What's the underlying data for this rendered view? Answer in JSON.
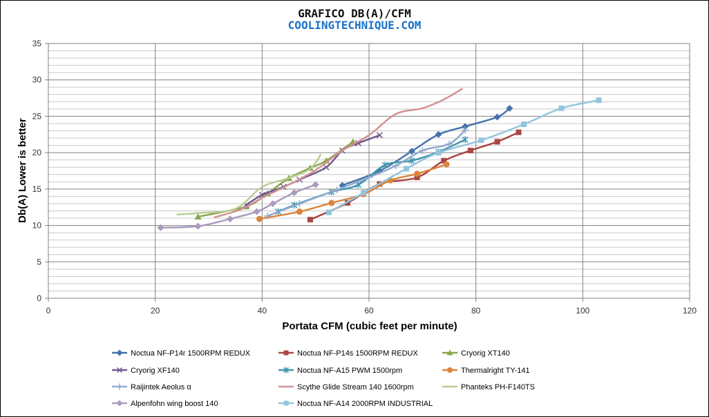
{
  "chart_data": {
    "type": "line",
    "title": "GRAFICO DB(A)/CFM",
    "subtitle": "COOLINGTECHNIQUE.COM",
    "xlabel": "Portata CFM (cubic feet per minute)",
    "ylabel": "Db(A) Lower is better",
    "xlim": [
      0,
      120
    ],
    "ylim": [
      0,
      35
    ],
    "xticks": [
      0,
      20,
      40,
      60,
      80,
      100,
      120
    ],
    "yticks": [
      0,
      5,
      10,
      15,
      20,
      25,
      30,
      35
    ],
    "grid": true,
    "legend_position": "bottom",
    "colors": {
      "title": "#111111",
      "subtitle": "#1a73c8",
      "major_grid": "#808080",
      "minor_grid": "#c8c8c8"
    },
    "series": [
      {
        "name": "Noctua NF-P14r 1500RPM REDUX",
        "color": "#4672aa",
        "marker": "diamond",
        "x": [
          55,
          62,
          68,
          73,
          78,
          84,
          86.3
        ],
        "y": [
          15.5,
          17.5,
          20.2,
          22.5,
          23.6,
          24.9,
          26.1
        ]
      },
      {
        "name": "Noctua NF-P14s 1500RPM REDUX",
        "color": "#aa4643",
        "marker": "square",
        "x": [
          49,
          56,
          62,
          69,
          74,
          79,
          84,
          88
        ],
        "y": [
          10.8,
          13.1,
          15.7,
          16.6,
          18.9,
          20.3,
          21.5,
          22.8
        ]
      },
      {
        "name": "Cryorig XT140",
        "color": "#89a54e",
        "marker": "triangle",
        "x": [
          28,
          37,
          41,
          45,
          49,
          52,
          57
        ],
        "y": [
          11.2,
          12.6,
          14.4,
          16.5,
          17.9,
          18.9,
          21.5
        ]
      },
      {
        "name": "Cryorig XF140",
        "color": "#71588f",
        "marker": "x",
        "x": [
          37,
          40,
          44,
          47,
          52,
          55,
          58,
          62
        ],
        "y": [
          12.8,
          14.2,
          15.3,
          16.3,
          18.0,
          20.3,
          21.3,
          22.4
        ]
      },
      {
        "name": "Noctua NF-A15 PWM 1500rpm",
        "color": "#4198af",
        "marker": "star",
        "x": [
          43,
          46,
          53,
          58,
          63,
          68,
          73,
          78
        ],
        "y": [
          11.9,
          12.8,
          14.6,
          15.6,
          18.3,
          18.9,
          20.1,
          21.8
        ]
      },
      {
        "name": "Thermalright TY-141",
        "color": "#db843d",
        "marker": "circle",
        "x": [
          39.5,
          47,
          53,
          59,
          64,
          69,
          74.5
        ],
        "y": [
          10.9,
          11.9,
          13.1,
          14.3,
          16.2,
          17.1,
          18.4
        ]
      },
      {
        "name": "Raijintek Aeolus α",
        "color": "#93a9cf",
        "marker": "plus",
        "x": [
          41,
          47,
          54,
          60,
          65,
          70,
          75,
          78
        ],
        "y": [
          11.3,
          13.0,
          14.9,
          16.6,
          18.2,
          20.3,
          21.2,
          23.1
        ]
      },
      {
        "name": "Scythe Glide Stream 140 1600rpm",
        "color": "#d19392",
        "marker": "none",
        "x": [
          31,
          36,
          40,
          45,
          50,
          55,
          60,
          65,
          70,
          74,
          77.5
        ],
        "y": [
          11.1,
          12.2,
          13.8,
          15.6,
          17.6,
          20.3,
          22.4,
          25.3,
          26.1,
          27.3,
          28.8
        ]
      },
      {
        "name": "Phanteks PH-F140TS",
        "color": "#b9cd96",
        "marker": "none",
        "x": [
          24,
          28,
          35,
          40,
          45,
          49,
          51
        ],
        "y": [
          11.5,
          11.7,
          12.3,
          15.3,
          16.5,
          17.8,
          19.8
        ]
      },
      {
        "name": "Alpenfohn wing boost 140",
        "color": "#a99bbd",
        "marker": "diamond",
        "x": [
          21,
          28,
          34,
          39,
          42,
          46,
          50
        ],
        "y": [
          9.7,
          9.9,
          10.9,
          11.9,
          13.0,
          14.5,
          15.6
        ]
      },
      {
        "name": "Noctua NF-A14 2000RPM INDUSTRIAL",
        "color": "#92c5de",
        "marker": "square",
        "x": [
          52.5,
          59,
          67,
          73,
          81,
          89,
          96,
          103
        ],
        "y": [
          11.8,
          14.5,
          17.8,
          20.0,
          21.7,
          23.9,
          26.1,
          27.2
        ]
      }
    ]
  }
}
